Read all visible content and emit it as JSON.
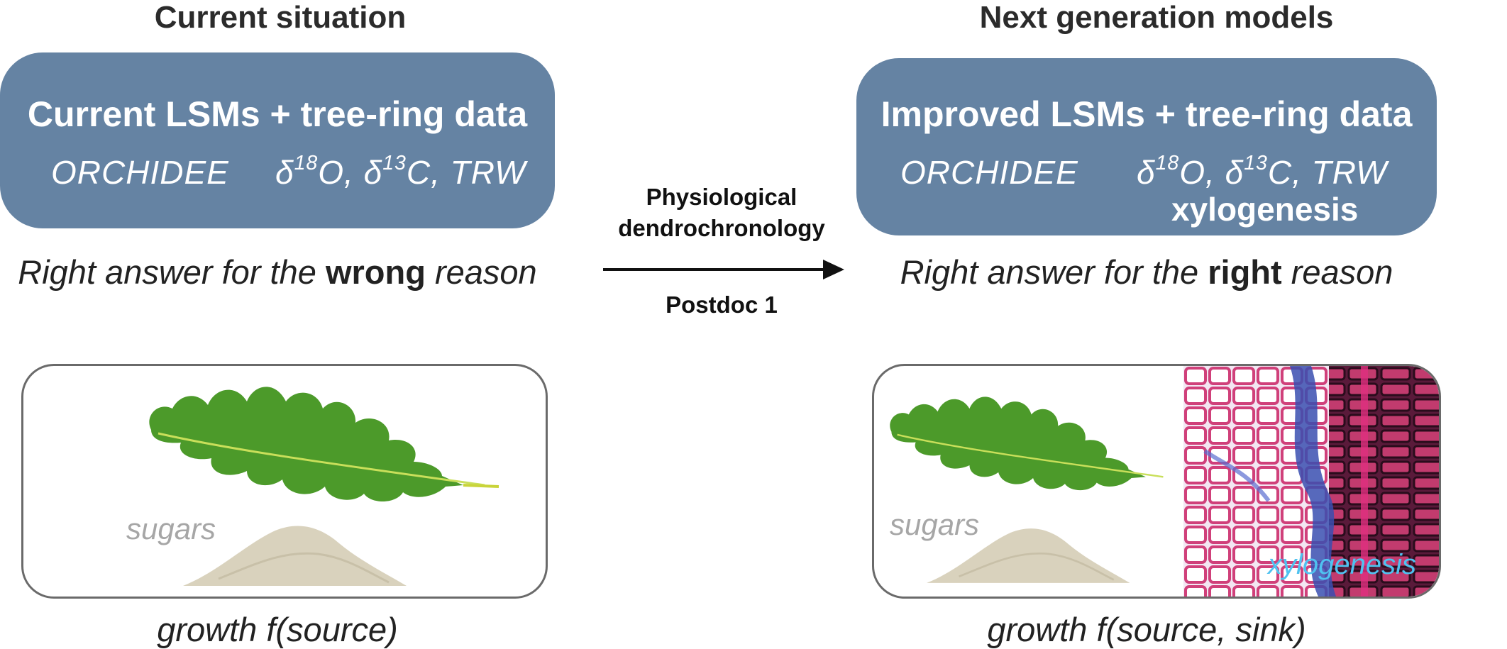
{
  "left": {
    "heading": "Current situation",
    "box": {
      "title": "Current LSMs + tree-ring data",
      "model": "ORCHIDEE",
      "isotope_a_pre": "δ",
      "isotope_a_sup": "18",
      "isotope_a_post": "O, ",
      "isotope_b_pre": "δ",
      "isotope_b_sup": "13",
      "isotope_b_post": "C, TRW"
    },
    "answer_pre": "Right answer for the ",
    "answer_bold": "wrong",
    "answer_post": " reason",
    "panel_label": "sugars",
    "caption": "growth f(source)"
  },
  "right": {
    "heading": "Next generation models",
    "box": {
      "title": "Improved LSMs + tree-ring data",
      "model": "ORCHIDEE",
      "isotope_a_pre": "δ",
      "isotope_a_sup": "18",
      "isotope_a_post": "O, ",
      "isotope_b_pre": "δ",
      "isotope_b_sup": "13",
      "isotope_b_post": "C, TRW",
      "extra": "xylogenesis"
    },
    "answer_pre": "Right answer for the ",
    "answer_bold": "right",
    "answer_post": " reason",
    "panel_label_sugars": "sugars",
    "panel_label_xylo": "xylogenesis",
    "caption": "growth f(source, sink)"
  },
  "arrow": {
    "label_top_1": "Physiological",
    "label_top_2": "dendrochronology",
    "label_bottom": "Postdoc 1"
  },
  "colors": {
    "box_fill": "#6583a3",
    "leaf": "#4c9a2a",
    "sugar": "#d9d2bd",
    "xylem_magenta": "#d0407a",
    "xylem_blue": "#3a4fb0"
  }
}
